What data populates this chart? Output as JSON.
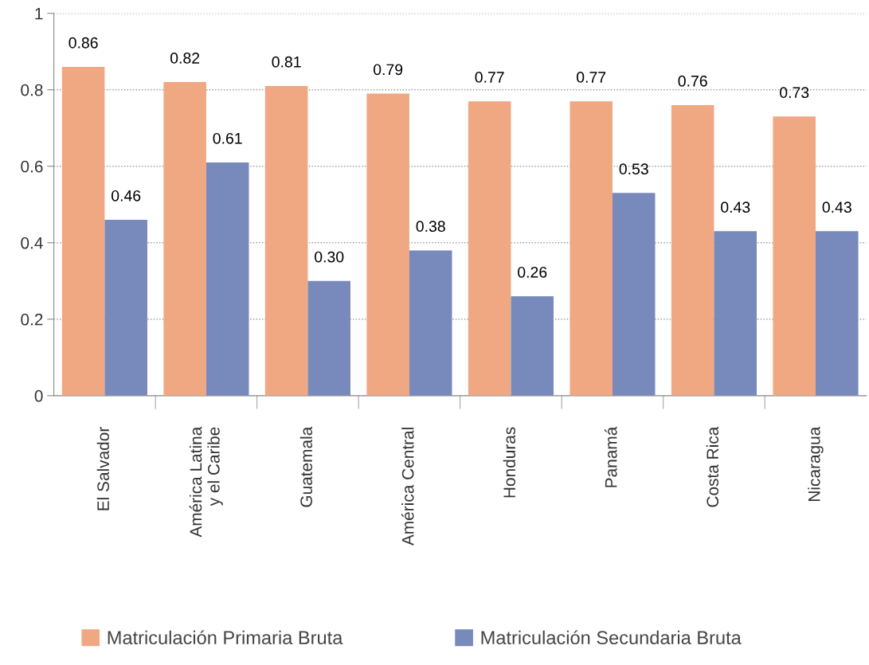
{
  "chart_data": {
    "type": "bar",
    "categories": [
      "El Salvador",
      "América Latina\ny el Caribe",
      "Guatemala",
      "América Central",
      "Honduras",
      "Panamá",
      "Costa Rica",
      "Nicaragua"
    ],
    "series": [
      {
        "name": "Matriculación Primaria Bruta",
        "color": "#f0a882",
        "values": [
          0.86,
          0.82,
          0.81,
          0.79,
          0.77,
          0.77,
          0.76,
          0.73
        ],
        "value_labels": [
          "0.86",
          "0.82",
          "0.81",
          "0.79",
          "0.77",
          "0.77",
          "0.76",
          "0.73"
        ]
      },
      {
        "name": "Matriculación Secundaria Bruta",
        "color": "#7889bb",
        "values": [
          0.46,
          0.61,
          0.3,
          0.38,
          0.26,
          0.53,
          0.43,
          0.43
        ],
        "value_labels": [
          "0.46",
          "0.61",
          "0.30",
          "0.38",
          "0.26",
          "0.53",
          "0.43",
          "0.43"
        ]
      }
    ],
    "ylim": [
      0,
      1
    ],
    "yticks": [
      0,
      0.2,
      0.4,
      0.6,
      0.8,
      1
    ],
    "grid": "y",
    "legend": "bottom"
  }
}
